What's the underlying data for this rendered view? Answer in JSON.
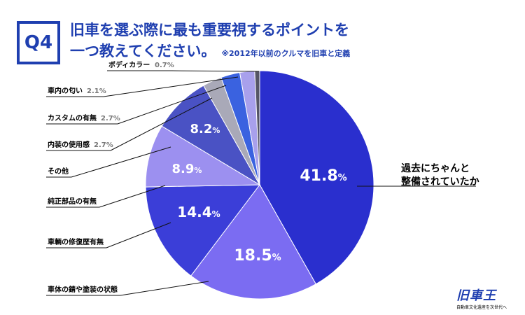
{
  "badge": "Q4",
  "title": {
    "line1": "旧車を選ぶ際に最も重要視するポイントを",
    "line2": "一つ教えてください。",
    "note": "※2012年以前のクルマを旧車と定義"
  },
  "chart_data": {
    "type": "pie",
    "title": "旧車を選ぶ際に最も重要視するポイントを一つ教えてください。",
    "slices": [
      {
        "label": "過去にちゃんと整備されていたか",
        "label_lines": [
          "過去にちゃんと",
          "整備されていたか"
        ],
        "value": 41.8,
        "display": "41.8",
        "color": "#2a2fce"
      },
      {
        "label": "車体の錆や塗装の状態",
        "value": 18.5,
        "display": "18.5",
        "color": "#7b6cf2"
      },
      {
        "label": "車輌の修復歴有無",
        "value": 14.4,
        "display": "14.4",
        "color": "#3b3ed8"
      },
      {
        "label": "純正部品の有無",
        "value": 8.9,
        "display": "8.9",
        "color": "#9c90f0"
      },
      {
        "label": "その他",
        "value": 8.2,
        "display": "8.2",
        "color": "#4a52c4"
      },
      {
        "label": "内装の使用感",
        "value": 2.7,
        "display": "2.7",
        "color": "#a9a9b8"
      },
      {
        "label": "カスタムの有無",
        "value": 2.7,
        "display": "2.7",
        "color": "#3a62e0"
      },
      {
        "label": "車内の匂い",
        "value": 2.1,
        "display": "2.1",
        "color": "#a8a0ec"
      },
      {
        "label": "ボディカラー",
        "value": 0.7,
        "display": "0.7",
        "color": "#555566"
      }
    ],
    "percent_sign": "%",
    "inside_label_color": "#ffffff",
    "outside_value_color": "#777777",
    "line_color": "#111111"
  },
  "logo": {
    "mark": "旧車王",
    "tagline": "自動車文化遺産を次世代へ"
  }
}
